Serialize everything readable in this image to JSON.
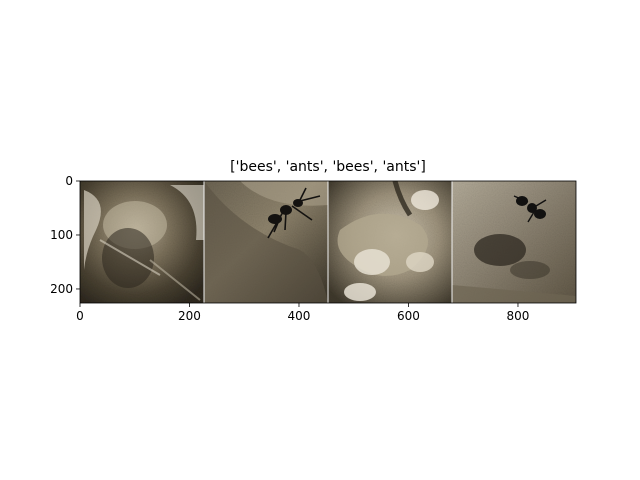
{
  "chart_data": {
    "type": "image",
    "title": "['bees', 'ants', 'bees', 'ants']",
    "xlabel": "",
    "ylabel": "",
    "xlim": [
      0,
      906
    ],
    "ylim": [
      226,
      0
    ],
    "x_ticks": [
      0,
      200,
      400,
      600,
      800
    ],
    "y_ticks": [
      0,
      100,
      200
    ],
    "grid": false,
    "image_grid": {
      "count": 4,
      "labels": [
        "bees",
        "ants",
        "bees",
        "ants"
      ]
    },
    "colors": {
      "frame": "#000000",
      "tile_separator": "#f2f2f2"
    }
  }
}
